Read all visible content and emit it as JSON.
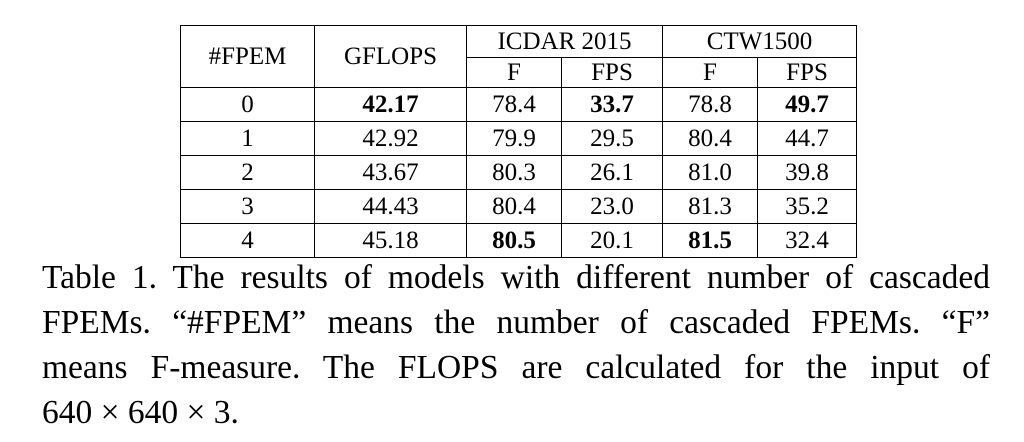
{
  "table": {
    "headers": {
      "fpem": "#FPEM",
      "gflops": "GFLOPS",
      "group1": "ICDAR 2015",
      "group2": "CTW1500",
      "sub_f": "F",
      "sub_fps": "FPS"
    },
    "rows": [
      {
        "fpem": "0",
        "gflops": "42.17",
        "icdar_f": "78.4",
        "icdar_fps": "33.7",
        "ctw_f": "78.8",
        "ctw_fps": "49.7"
      },
      {
        "fpem": "1",
        "gflops": "42.92",
        "icdar_f": "79.9",
        "icdar_fps": "29.5",
        "ctw_f": "80.4",
        "ctw_fps": "44.7"
      },
      {
        "fpem": "2",
        "gflops": "43.67",
        "icdar_f": "80.3",
        "icdar_fps": "26.1",
        "ctw_f": "81.0",
        "ctw_fps": "39.8"
      },
      {
        "fpem": "3",
        "gflops": "44.43",
        "icdar_f": "80.4",
        "icdar_fps": "23.0",
        "ctw_f": "81.3",
        "ctw_fps": "35.2"
      },
      {
        "fpem": "4",
        "gflops": "45.18",
        "icdar_f": "80.5",
        "icdar_fps": "20.1",
        "ctw_f": "81.5",
        "ctw_fps": "32.4"
      }
    ]
  },
  "caption": {
    "line1": "Table 1. The results of models with different number of cascaded",
    "line2": "FPEMs. “#FPEM” means the number of cascaded FPEMs. “F”",
    "line3": "means F-measure.  The FLOPS are calculated for the input of",
    "line4": "640 × 640 × 3."
  }
}
